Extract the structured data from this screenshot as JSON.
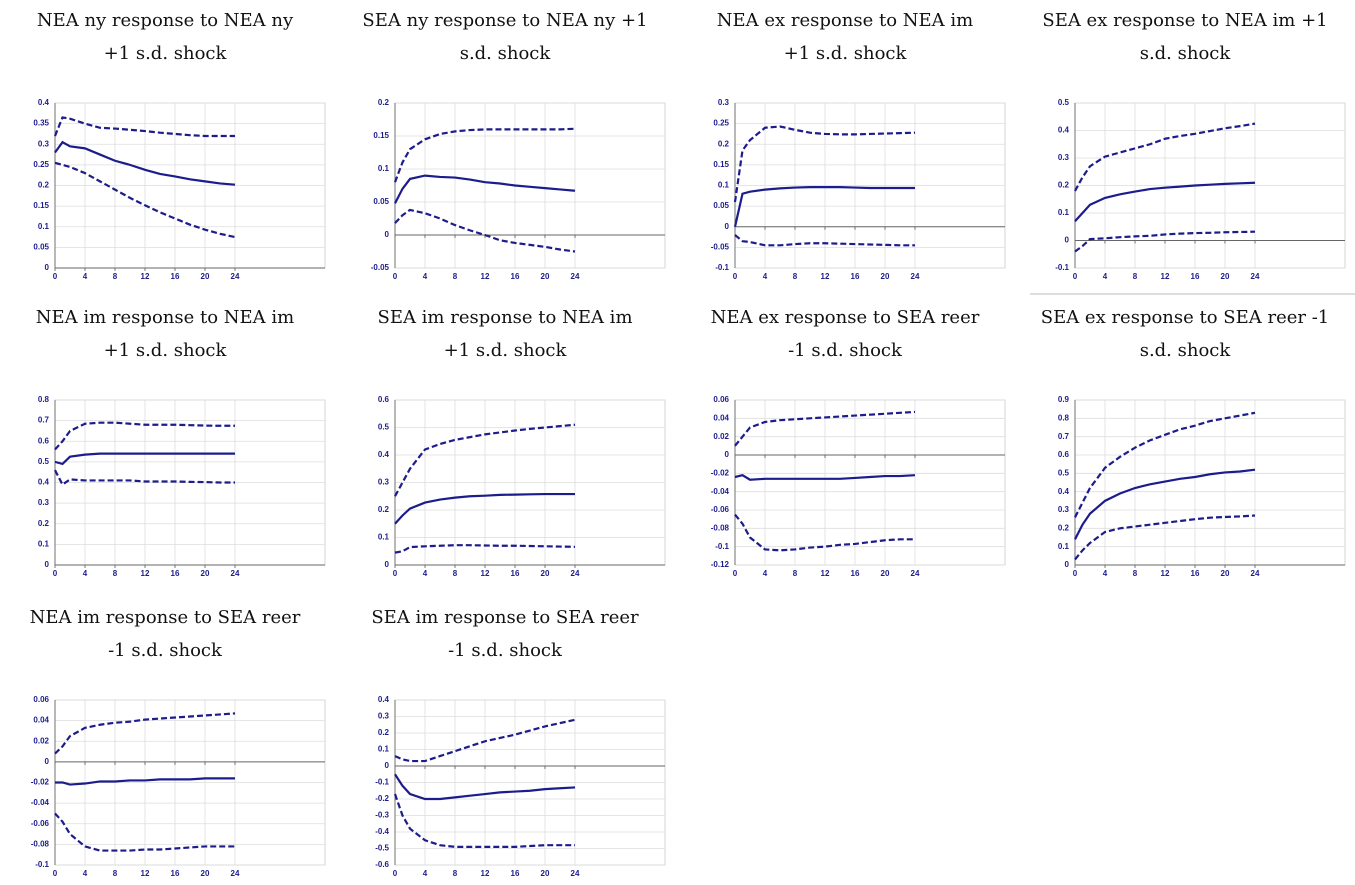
{
  "chart_data": [
    {
      "type": "line",
      "title": [
        "NEA ny response to NEA ny",
        "+1 s.d. shock"
      ],
      "x": [
        0,
        1,
        2,
        4,
        6,
        8,
        10,
        12,
        14,
        16,
        18,
        20,
        22,
        24
      ],
      "xlim": [
        0,
        36
      ],
      "xticks": [
        0,
        4,
        8,
        12,
        16,
        20,
        24
      ],
      "ylim": [
        0,
        0.4
      ],
      "yticks": [
        0,
        0.05,
        0.1,
        0.15,
        0.2,
        0.25,
        0.3,
        0.35,
        0.4
      ],
      "grid": true,
      "series": [
        {
          "color": "#1c1c8c",
          "style": "dashed",
          "values": [
            0.32,
            0.365,
            0.362,
            0.35,
            0.34,
            0.338,
            0.335,
            0.332,
            0.328,
            0.325,
            0.322,
            0.32,
            0.32,
            0.32
          ]
        },
        {
          "color": "#1c1c8c",
          "style": "solid",
          "values": [
            0.28,
            0.305,
            0.295,
            0.29,
            0.275,
            0.26,
            0.25,
            0.238,
            0.228,
            0.222,
            0.215,
            0.21,
            0.205,
            0.202
          ]
        },
        {
          "color": "#1c1c8c",
          "style": "dashed",
          "values": [
            0.255,
            0.25,
            0.245,
            0.23,
            0.21,
            0.19,
            0.17,
            0.152,
            0.135,
            0.12,
            0.105,
            0.093,
            0.083,
            0.075
          ]
        }
      ]
    },
    {
      "type": "line",
      "title": [
        "SEA ny response to NEA ny +1",
        "s.d. shock"
      ],
      "x": [
        0,
        1,
        2,
        4,
        6,
        8,
        10,
        12,
        14,
        16,
        18,
        20,
        22,
        24
      ],
      "xlim": [
        0,
        36
      ],
      "xticks": [
        0,
        4,
        8,
        12,
        16,
        20,
        24
      ],
      "ylim": [
        -0.05,
        0.2
      ],
      "yticks": [
        -0.05,
        0,
        0.05,
        0.1,
        0.15,
        0.2
      ],
      "grid": true,
      "series": [
        {
          "color": "#1c1c8c",
          "style": "dashed",
          "values": [
            0.08,
            0.11,
            0.13,
            0.145,
            0.153,
            0.157,
            0.159,
            0.16,
            0.16,
            0.16,
            0.16,
            0.16,
            0.16,
            0.161
          ]
        },
        {
          "color": "#1c1c8c",
          "style": "solid",
          "values": [
            0.048,
            0.07,
            0.085,
            0.09,
            0.088,
            0.087,
            0.084,
            0.08,
            0.078,
            0.075,
            0.073,
            0.071,
            0.069,
            0.067
          ]
        },
        {
          "color": "#1c1c8c",
          "style": "dashed",
          "values": [
            0.018,
            0.03,
            0.038,
            0.033,
            0.025,
            0.015,
            0.007,
            0.0,
            -0.008,
            -0.012,
            -0.015,
            -0.018,
            -0.022,
            -0.025
          ]
        }
      ]
    },
    {
      "type": "line",
      "title": [
        "NEA ex response to NEA im",
        "+1 s.d. shock"
      ],
      "x": [
        0,
        1,
        2,
        4,
        6,
        8,
        10,
        12,
        14,
        16,
        18,
        20,
        22,
        24
      ],
      "xlim": [
        0,
        36
      ],
      "xticks": [
        0,
        4,
        8,
        12,
        16,
        20,
        24
      ],
      "ylim": [
        -0.1,
        0.3
      ],
      "yticks": [
        -0.1,
        -0.05,
        0,
        0.05,
        0.1,
        0.15,
        0.2,
        0.25,
        0.3
      ],
      "grid": true,
      "series": [
        {
          "color": "#1c1c8c",
          "style": "dashed",
          "values": [
            0.06,
            0.185,
            0.21,
            0.24,
            0.243,
            0.235,
            0.228,
            0.225,
            0.224,
            0.224,
            0.225,
            0.226,
            0.227,
            0.228
          ]
        },
        {
          "color": "#1c1c8c",
          "style": "solid",
          "values": [
            0.0,
            0.08,
            0.085,
            0.09,
            0.093,
            0.095,
            0.096,
            0.096,
            0.096,
            0.095,
            0.094,
            0.094,
            0.094,
            0.094
          ]
        },
        {
          "color": "#1c1c8c",
          "style": "dashed",
          "values": [
            -0.02,
            -0.035,
            -0.037,
            -0.045,
            -0.045,
            -0.042,
            -0.04,
            -0.04,
            -0.041,
            -0.042,
            -0.043,
            -0.044,
            -0.045,
            -0.045
          ]
        }
      ]
    },
    {
      "type": "line",
      "title": [
        "SEA ex response to NEA im +1",
        "s.d. shock"
      ],
      "x": [
        0,
        1,
        2,
        4,
        6,
        8,
        10,
        12,
        14,
        16,
        18,
        20,
        22,
        24
      ],
      "xlim": [
        0,
        36
      ],
      "xticks": [
        0,
        4,
        8,
        12,
        16,
        20,
        24
      ],
      "ylim": [
        -0.1,
        0.5
      ],
      "yticks": [
        -0.1,
        0,
        0.1,
        0.2,
        0.3,
        0.4,
        0.5
      ],
      "grid": true,
      "series": [
        {
          "color": "#1c1c8c",
          "style": "dashed",
          "values": [
            0.18,
            0.23,
            0.27,
            0.305,
            0.32,
            0.335,
            0.35,
            0.37,
            0.38,
            0.388,
            0.398,
            0.408,
            0.416,
            0.425
          ]
        },
        {
          "color": "#1c1c8c",
          "style": "solid",
          "values": [
            0.07,
            0.1,
            0.13,
            0.155,
            0.168,
            0.178,
            0.187,
            0.192,
            0.196,
            0.2,
            0.203,
            0.206,
            0.208,
            0.21
          ]
        },
        {
          "color": "#1c1c8c",
          "style": "dashed",
          "values": [
            -0.04,
            -0.02,
            0.005,
            0.008,
            0.012,
            0.015,
            0.017,
            0.022,
            0.025,
            0.027,
            0.028,
            0.03,
            0.031,
            0.032
          ]
        }
      ]
    },
    {
      "type": "line",
      "title": [
        "NEA im response to NEA im",
        "+1 s.d. shock"
      ],
      "x": [
        0,
        1,
        2,
        4,
        6,
        8,
        10,
        12,
        14,
        16,
        18,
        20,
        22,
        24
      ],
      "xlim": [
        0,
        36
      ],
      "xticks": [
        0,
        4,
        8,
        12,
        16,
        20,
        24
      ],
      "ylim": [
        0,
        0.8
      ],
      "yticks": [
        0,
        0.1,
        0.2,
        0.3,
        0.4,
        0.5,
        0.6,
        0.7,
        0.8
      ],
      "grid": true,
      "series": [
        {
          "color": "#1c1c8c",
          "style": "dashed",
          "values": [
            0.56,
            0.6,
            0.65,
            0.685,
            0.69,
            0.69,
            0.685,
            0.68,
            0.68,
            0.68,
            0.678,
            0.676,
            0.675,
            0.675
          ]
        },
        {
          "color": "#1c1c8c",
          "style": "solid",
          "values": [
            0.5,
            0.49,
            0.525,
            0.535,
            0.54,
            0.54,
            0.54,
            0.54,
            0.54,
            0.54,
            0.54,
            0.54,
            0.54,
            0.54
          ]
        },
        {
          "color": "#1c1c8c",
          "style": "dashed",
          "values": [
            0.46,
            0.39,
            0.415,
            0.41,
            0.41,
            0.41,
            0.41,
            0.405,
            0.405,
            0.405,
            0.403,
            0.402,
            0.4,
            0.4
          ]
        }
      ]
    },
    {
      "type": "line",
      "title": [
        "SEA im response to NEA im",
        "+1 s.d. shock"
      ],
      "x": [
        0,
        1,
        2,
        4,
        6,
        8,
        10,
        12,
        14,
        16,
        18,
        20,
        22,
        24
      ],
      "xlim": [
        0,
        36
      ],
      "xticks": [
        0,
        4,
        8,
        12,
        16,
        20,
        24
      ],
      "ylim": [
        0,
        0.6
      ],
      "yticks": [
        0,
        0.1,
        0.2,
        0.3,
        0.4,
        0.5,
        0.6
      ],
      "grid": true,
      "series": [
        {
          "color": "#1c1c8c",
          "style": "dashed",
          "values": [
            0.25,
            0.3,
            0.35,
            0.42,
            0.44,
            0.455,
            0.465,
            0.475,
            0.482,
            0.489,
            0.495,
            0.5,
            0.505,
            0.51
          ]
        },
        {
          "color": "#1c1c8c",
          "style": "solid",
          "values": [
            0.15,
            0.18,
            0.205,
            0.227,
            0.238,
            0.245,
            0.25,
            0.252,
            0.255,
            0.256,
            0.257,
            0.258,
            0.258,
            0.258
          ]
        },
        {
          "color": "#1c1c8c",
          "style": "dashed",
          "values": [
            0.045,
            0.05,
            0.065,
            0.068,
            0.07,
            0.072,
            0.072,
            0.071,
            0.07,
            0.07,
            0.069,
            0.068,
            0.067,
            0.066
          ]
        }
      ]
    },
    {
      "type": "line",
      "title": [
        "NEA ex response to SEA reer",
        "-1 s.d. shock"
      ],
      "x": [
        0,
        1,
        2,
        4,
        6,
        8,
        10,
        12,
        14,
        16,
        18,
        20,
        22,
        24
      ],
      "xlim": [
        0,
        36
      ],
      "xticks": [
        0,
        4,
        8,
        12,
        16,
        20,
        24
      ],
      "ylim": [
        -0.12,
        0.06
      ],
      "yticks": [
        -0.12,
        -0.1,
        -0.08,
        -0.06,
        -0.04,
        -0.02,
        0,
        0.02,
        0.04,
        0.06
      ],
      "grid": true,
      "series": [
        {
          "color": "#1c1c8c",
          "style": "dashed",
          "values": [
            0.01,
            0.02,
            0.03,
            0.036,
            0.038,
            0.039,
            0.04,
            0.041,
            0.042,
            0.043,
            0.044,
            0.045,
            0.046,
            0.047
          ]
        },
        {
          "color": "#1c1c8c",
          "style": "solid",
          "values": [
            -0.024,
            -0.022,
            -0.027,
            -0.026,
            -0.026,
            -0.026,
            -0.026,
            -0.026,
            -0.026,
            -0.025,
            -0.024,
            -0.023,
            -0.023,
            -0.022
          ]
        },
        {
          "color": "#1c1c8c",
          "style": "dashed",
          "values": [
            -0.065,
            -0.075,
            -0.09,
            -0.103,
            -0.104,
            -0.103,
            -0.101,
            -0.1,
            -0.098,
            -0.097,
            -0.095,
            -0.093,
            -0.092,
            -0.092
          ]
        }
      ]
    },
    {
      "type": "line",
      "title": [
        "SEA ex response to SEA reer -1",
        "s.d. shock"
      ],
      "x": [
        0,
        1,
        2,
        4,
        6,
        8,
        10,
        12,
        14,
        16,
        18,
        20,
        22,
        24
      ],
      "xlim": [
        0,
        36
      ],
      "xticks": [
        0,
        4,
        8,
        12,
        16,
        20,
        24
      ],
      "ylim": [
        0,
        0.9
      ],
      "yticks": [
        0,
        0.1,
        0.2,
        0.3,
        0.4,
        0.5,
        0.6,
        0.7,
        0.8,
        0.9
      ],
      "grid": true,
      "series": [
        {
          "color": "#1c1c8c",
          "style": "dashed",
          "values": [
            0.26,
            0.34,
            0.42,
            0.53,
            0.59,
            0.64,
            0.68,
            0.71,
            0.74,
            0.76,
            0.785,
            0.8,
            0.815,
            0.83
          ]
        },
        {
          "color": "#1c1c8c",
          "style": "solid",
          "values": [
            0.14,
            0.22,
            0.28,
            0.35,
            0.39,
            0.42,
            0.44,
            0.455,
            0.47,
            0.48,
            0.495,
            0.505,
            0.51,
            0.52
          ]
        },
        {
          "color": "#1c1c8c",
          "style": "dashed",
          "values": [
            0.03,
            0.08,
            0.12,
            0.18,
            0.2,
            0.21,
            0.22,
            0.23,
            0.24,
            0.25,
            0.258,
            0.262,
            0.265,
            0.27
          ]
        }
      ]
    },
    {
      "type": "line",
      "title": [
        "NEA im response to SEA reer",
        "-1 s.d. shock"
      ],
      "x": [
        0,
        1,
        2,
        4,
        6,
        8,
        10,
        12,
        14,
        16,
        18,
        20,
        22,
        24
      ],
      "xlim": [
        0,
        36
      ],
      "xticks": [
        0,
        4,
        8,
        12,
        16,
        20,
        24
      ],
      "ylim": [
        -0.1,
        0.06
      ],
      "yticks": [
        -0.1,
        -0.08,
        -0.06,
        -0.04,
        -0.02,
        0,
        0.02,
        0.04,
        0.06
      ],
      "grid": true,
      "series": [
        {
          "color": "#1c1c8c",
          "style": "dashed",
          "values": [
            0.008,
            0.015,
            0.025,
            0.033,
            0.036,
            0.038,
            0.039,
            0.041,
            0.042,
            0.043,
            0.044,
            0.045,
            0.046,
            0.047
          ]
        },
        {
          "color": "#1c1c8c",
          "style": "solid",
          "values": [
            -0.02,
            -0.02,
            -0.022,
            -0.021,
            -0.019,
            -0.019,
            -0.018,
            -0.018,
            -0.017,
            -0.017,
            -0.017,
            -0.016,
            -0.016,
            -0.016
          ]
        },
        {
          "color": "#1c1c8c",
          "style": "dashed",
          "values": [
            -0.05,
            -0.058,
            -0.07,
            -0.082,
            -0.086,
            -0.086,
            -0.086,
            -0.085,
            -0.085,
            -0.084,
            -0.083,
            -0.082,
            -0.082,
            -0.082
          ]
        }
      ]
    },
    {
      "type": "line",
      "title": [
        "SEA im response to SEA reer",
        "-1 s.d. shock"
      ],
      "x": [
        0,
        1,
        2,
        4,
        6,
        8,
        10,
        12,
        14,
        16,
        18,
        20,
        22,
        24
      ],
      "xlim": [
        0,
        36
      ],
      "xticks": [
        0,
        4,
        8,
        12,
        16,
        20,
        24
      ],
      "ylim": [
        -0.6,
        0.4
      ],
      "yticks": [
        -0.6,
        -0.5,
        -0.4,
        -0.3,
        -0.2,
        -0.1,
        0,
        0.1,
        0.2,
        0.3,
        0.4
      ],
      "grid": true,
      "series": [
        {
          "color": "#1c1c8c",
          "style": "dashed",
          "values": [
            0.06,
            0.04,
            0.03,
            0.03,
            0.06,
            0.09,
            0.12,
            0.15,
            0.17,
            0.19,
            0.215,
            0.24,
            0.26,
            0.28
          ]
        },
        {
          "color": "#1c1c8c",
          "style": "solid",
          "values": [
            -0.05,
            -0.12,
            -0.17,
            -0.2,
            -0.2,
            -0.19,
            -0.18,
            -0.17,
            -0.16,
            -0.155,
            -0.15,
            -0.14,
            -0.135,
            -0.13
          ]
        },
        {
          "color": "#1c1c8c",
          "style": "dashed",
          "values": [
            -0.17,
            -0.3,
            -0.38,
            -0.45,
            -0.48,
            -0.49,
            -0.49,
            -0.49,
            -0.49,
            -0.49,
            -0.485,
            -0.48,
            -0.48,
            -0.48
          ]
        }
      ]
    }
  ]
}
